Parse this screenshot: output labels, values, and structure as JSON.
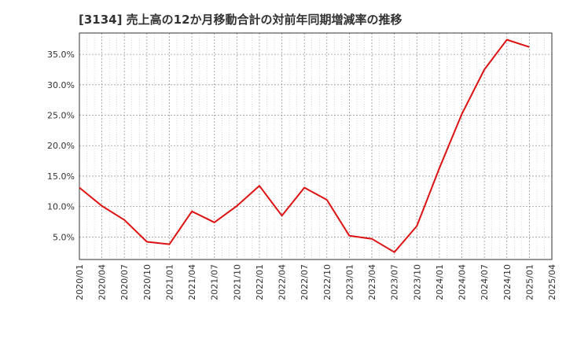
{
  "chart_data": {
    "type": "line",
    "title": "[3134]  売上高の12か月移動合計の対前年同期増減率の推移",
    "xlabel": "",
    "ylabel": "",
    "x": [
      "2020/01",
      "2020/04",
      "2020/07",
      "2020/10",
      "2021/01",
      "2021/04",
      "2021/07",
      "2021/10",
      "2022/01",
      "2022/04",
      "2022/07",
      "2022/10",
      "2023/01",
      "2023/04",
      "2023/07",
      "2023/10",
      "2024/01",
      "2024/04",
      "2024/07",
      "2024/10",
      "2025/01"
    ],
    "x_ticks": [
      "2020/01",
      "2020/04",
      "2020/07",
      "2020/10",
      "2021/01",
      "2021/04",
      "2021/07",
      "2021/10",
      "2022/01",
      "2022/04",
      "2022/07",
      "2022/10",
      "2023/01",
      "2023/04",
      "2023/07",
      "2023/10",
      "2024/01",
      "2024/04",
      "2024/07",
      "2024/10",
      "2025/01",
      "2025/04"
    ],
    "y_ticks": [
      5,
      10,
      15,
      20,
      25,
      30,
      35
    ],
    "y_tick_labels": [
      "5.0%",
      "10.0%",
      "15.0%",
      "20.0%",
      "25.0%",
      "30.0%",
      "35.0%"
    ],
    "ylim": [
      1.3,
      38.5
    ],
    "grid": true,
    "series": [
      {
        "name": "増減率",
        "color": "#dd1111",
        "values": [
          13.1,
          10.1,
          7.8,
          4.2,
          3.8,
          9.2,
          7.4,
          10.1,
          13.4,
          8.5,
          13.1,
          11.1,
          5.2,
          4.7,
          2.5,
          6.8,
          16.3,
          25.2,
          32.5,
          37.4,
          36.2
        ]
      }
    ]
  }
}
